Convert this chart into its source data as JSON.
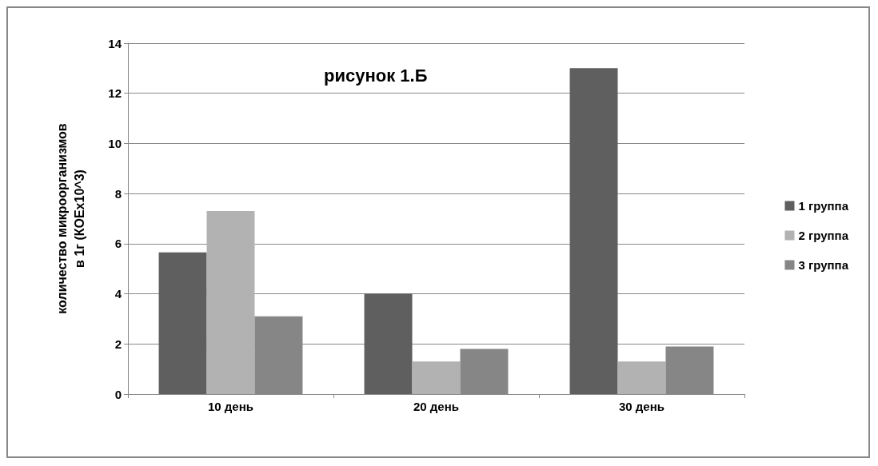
{
  "chart_data": {
    "type": "bar",
    "title": "рисунок 1.Б",
    "ylabel": "количество микроорганизмов\nв 1г (КОЕх10^3)",
    "categories": [
      "10 день",
      "20 день",
      "30 день"
    ],
    "series": [
      {
        "name": "1 группа",
        "color": "#5f5f5f",
        "values": [
          5.65,
          4.0,
          13.0
        ]
      },
      {
        "name": "2 группа",
        "color": "#b2b2b2",
        "values": [
          7.3,
          1.3,
          1.3
        ]
      },
      {
        "name": "3 группа",
        "color": "#868686",
        "values": [
          3.1,
          1.8,
          1.9
        ]
      }
    ],
    "ylim": [
      0,
      14
    ],
    "yticks": [
      0,
      2,
      4,
      6,
      8,
      10,
      12,
      14
    ],
    "grid": "y",
    "legend": "right"
  }
}
